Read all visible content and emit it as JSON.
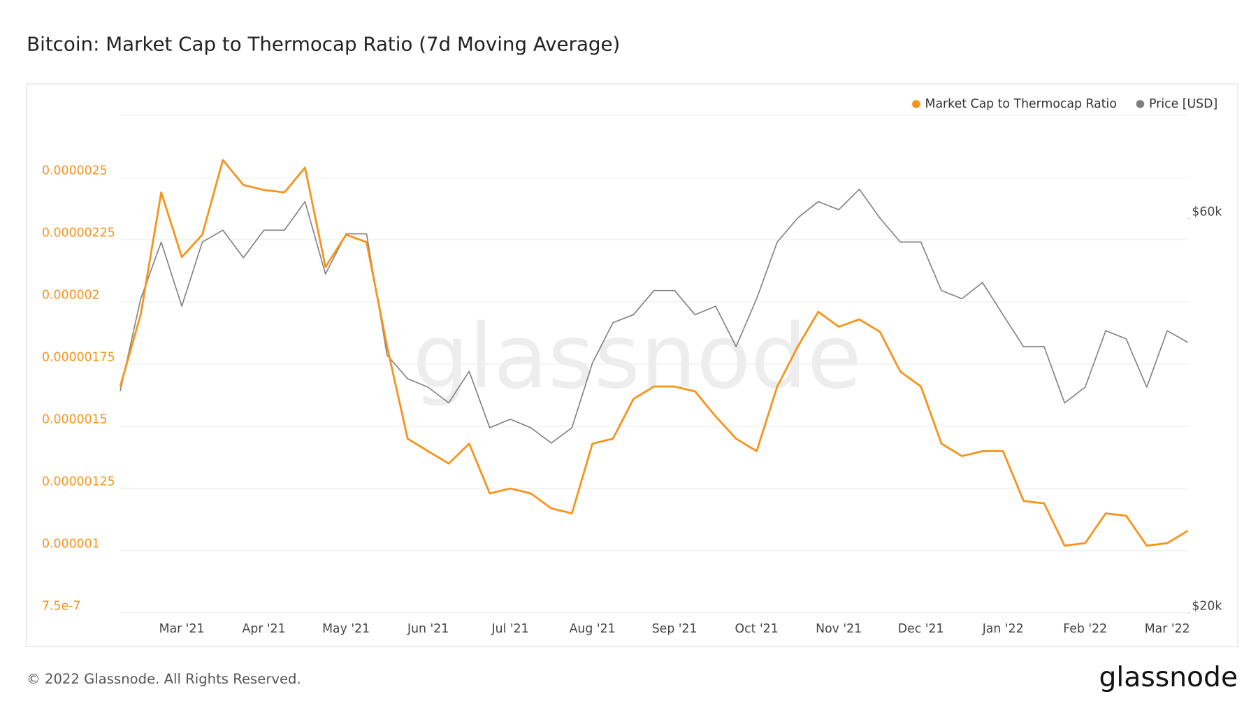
{
  "chart_data": {
    "type": "line",
    "title": "Bitcoin: Market Cap to Thermocap Ratio (7d Moving Average)",
    "footer": "© 2022 Glassnode. All Rights Reserved.",
    "brand": "glassnode",
    "categories": [
      null,
      null,
      null,
      "Mar '21",
      null,
      null,
      null,
      "Apr '21",
      null,
      null,
      null,
      "May '21",
      null,
      null,
      null,
      "Jun '21",
      null,
      null,
      null,
      "Jul '21",
      null,
      null,
      null,
      "Aug '21",
      null,
      null,
      null,
      "Sep '21",
      null,
      null,
      null,
      "Oct '21",
      null,
      null,
      null,
      "Nov '21",
      null,
      null,
      null,
      "Dec '21",
      null,
      null,
      null,
      "Jan '22",
      null,
      null,
      null,
      "Feb '22",
      null,
      null,
      null,
      "Mar '22",
      null
    ],
    "series": [
      {
        "name": "Market Cap to Thermocap Ratio",
        "color": "#f7931a",
        "axis": "y",
        "values": [
          1.66e-06,
          1.95e-06,
          2.44e-06,
          2.18e-06,
          2.27e-06,
          2.57e-06,
          2.47e-06,
          2.45e-06,
          2.44e-06,
          2.54e-06,
          2.14e-06,
          2.27e-06,
          2.24e-06,
          1.82e-06,
          1.45e-06,
          1.4e-06,
          1.35e-06,
          1.43e-06,
          1.23e-06,
          1.25e-06,
          1.23e-06,
          1.17e-06,
          1.15e-06,
          1.43e-06,
          1.45e-06,
          1.61e-06,
          1.66e-06,
          1.66e-06,
          1.64e-06,
          1.54e-06,
          1.45e-06,
          1.4e-06,
          1.66e-06,
          1.82e-06,
          1.96e-06,
          1.9e-06,
          1.93e-06,
          1.88e-06,
          1.72e-06,
          1.66e-06,
          1.43e-06,
          1.38e-06,
          1.4e-06,
          1.4e-06,
          1.2e-06,
          1.19e-06,
          1.02e-06,
          1.03e-06,
          1.15e-06,
          1.14e-06,
          1.02e-06,
          1.03e-06,
          1.08e-06
        ]
      },
      {
        "name": "Price [USD]",
        "color": "#808080",
        "axis": "y2",
        "values": [
          37100,
          48000,
          56200,
          47000,
          56200,
          58100,
          53800,
          58100,
          58100,
          62900,
          51400,
          57500,
          57500,
          41000,
          38400,
          37500,
          35900,
          39200,
          33500,
          34300,
          33500,
          32100,
          33500,
          40100,
          44900,
          45900,
          49100,
          49100,
          45900,
          47000,
          42000,
          48000,
          56200,
          60100,
          62900,
          61500,
          65100,
          60100,
          56200,
          56200,
          49100,
          48000,
          50200,
          45900,
          42000,
          42000,
          35900,
          37500,
          43900,
          42900,
          37500,
          43900,
          42500
        ]
      }
    ],
    "ylim": [
      7.5e-07,
      2.75e-06
    ],
    "yticks": [
      7.5e-07,
      1e-06,
      1.25e-06,
      1.5e-06,
      1.75e-06,
      2e-06,
      2.25e-06,
      2.5e-06
    ],
    "y2lim": [
      20000,
      80000
    ],
    "y2log": true,
    "y2ticks": [
      {
        "value": 20000,
        "label": "$20k"
      },
      {
        "value": 60000,
        "label": "$60k"
      }
    ],
    "grid": true,
    "legend": "top-right"
  }
}
